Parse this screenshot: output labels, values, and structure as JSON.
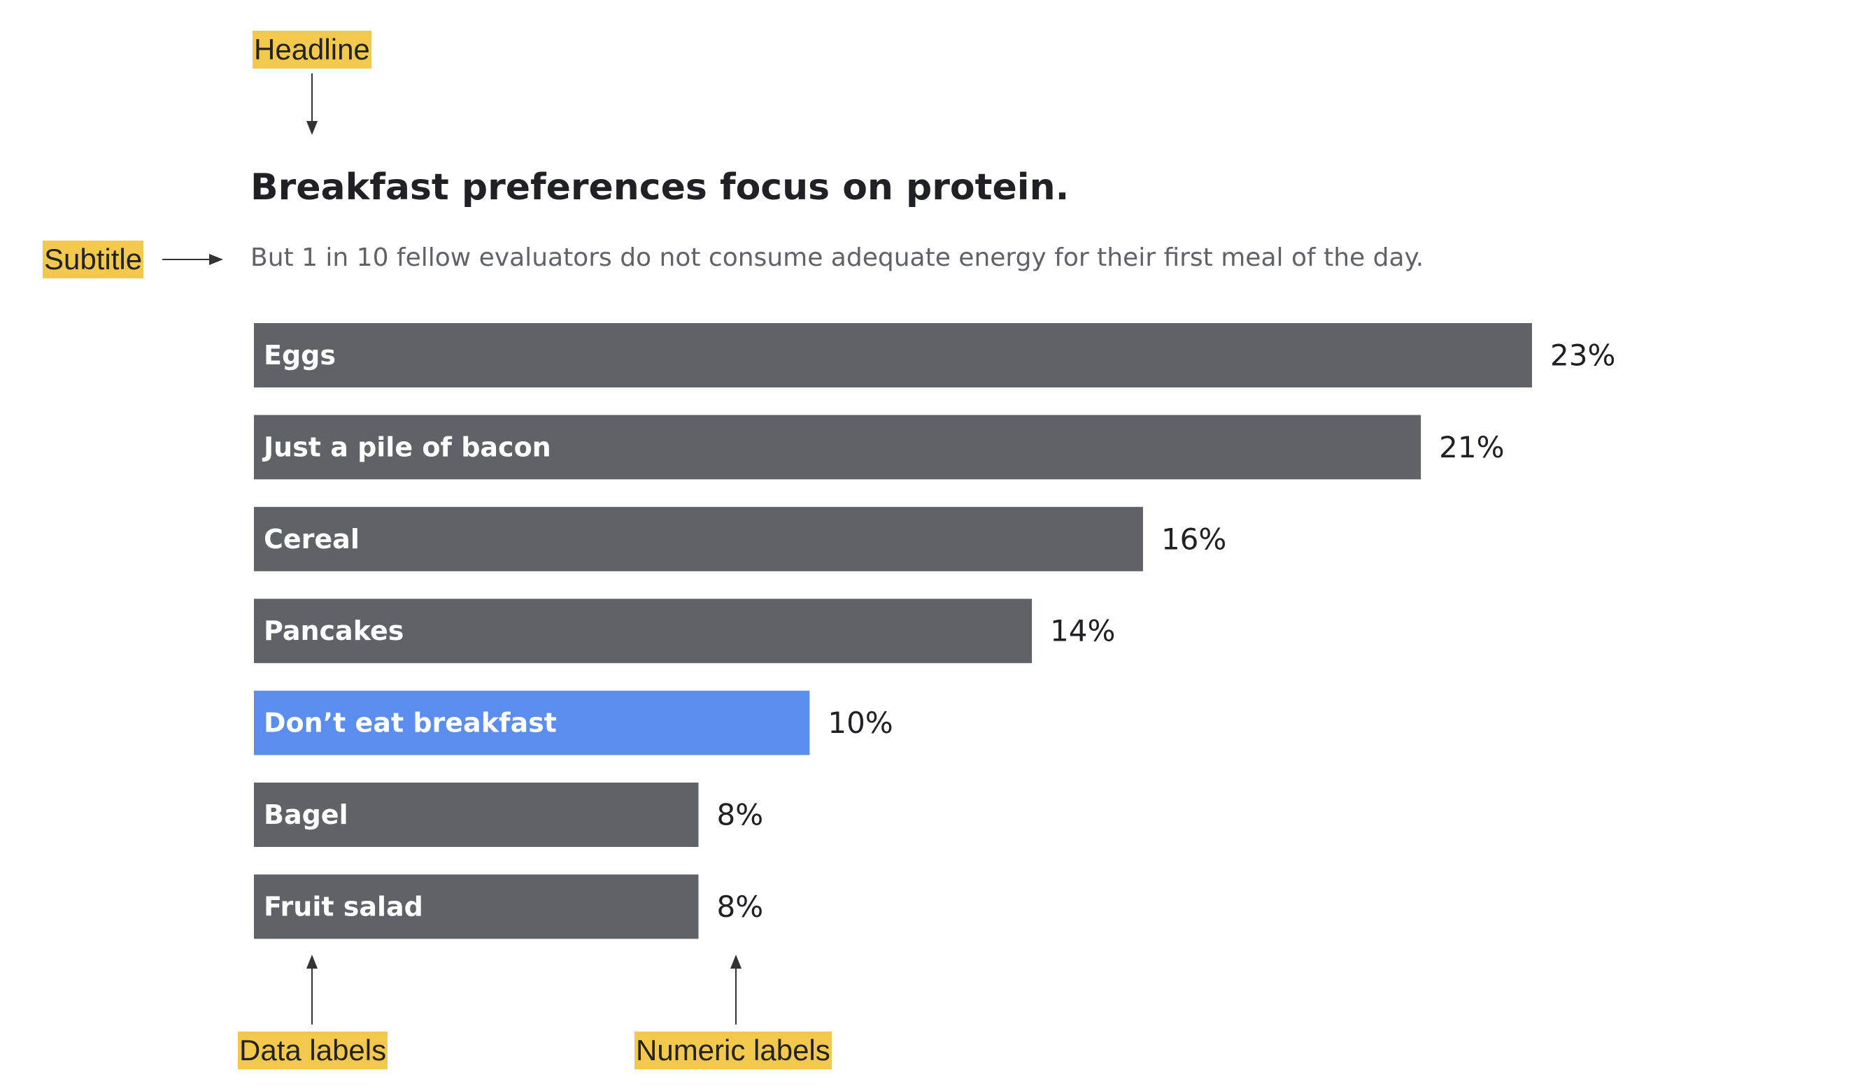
{
  "annotations": {
    "headline": "Headline",
    "subtitle": "Subtitle",
    "data_labels": "Data labels",
    "numeric_labels": "Numeric labels"
  },
  "colors": {
    "bar": "#5f6368",
    "highlight": "#5b8def",
    "callout": "#f2c94c",
    "text": "#202124"
  },
  "chart_data": {
    "type": "bar",
    "orientation": "horizontal",
    "title": "Breakfast preferences focus on protein.",
    "subtitle": "But 1 in 10 fellow evaluators do not consume adequate energy for their first meal of the day.",
    "categories": [
      "Eggs",
      "Just a pile of bacon",
      "Cereal",
      "Pancakes",
      "Don’t eat breakfast",
      "Bagel",
      "Fruit salad"
    ],
    "values": [
      23,
      21,
      16,
      14,
      10,
      8,
      8
    ],
    "value_labels": [
      "23%",
      "21%",
      "16%",
      "14%",
      "10%",
      "8%",
      "8%"
    ],
    "highlight": [
      "Don’t eat breakfast"
    ],
    "xlim": [
      0,
      23
    ],
    "xlabel": "",
    "ylabel": "",
    "grid": false
  }
}
